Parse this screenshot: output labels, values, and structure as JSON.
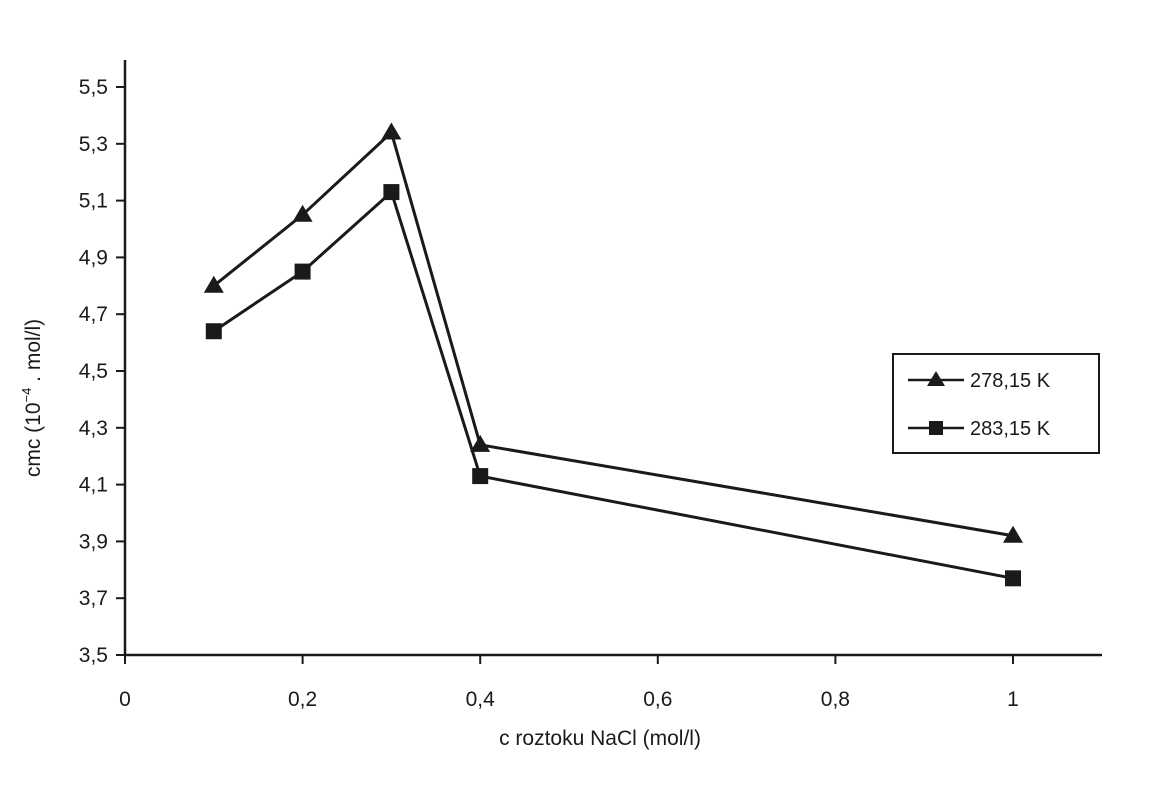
{
  "chart_data": {
    "type": "line",
    "title": "",
    "xlabel": "c roztoku NaCl  (mol/l)",
    "ylabel_main": "cmc (10",
    "ylabel_sup": "−4",
    "ylabel_tail": " . mol/l)",
    "x_tick_labels": [
      "0",
      "0,2",
      "0,4",
      "0,6",
      "0,8",
      "1"
    ],
    "x_tick_values": [
      0,
      0.2,
      0.4,
      0.6,
      0.8,
      1.0
    ],
    "y_tick_labels": [
      "3,5",
      "3,7",
      "3,9",
      "4,1",
      "4,3",
      "4,5",
      "4,7",
      "4,9",
      "5,1",
      "5,3",
      "5,5"
    ],
    "y_tick_values": [
      3.5,
      3.7,
      3.9,
      4.1,
      4.3,
      4.5,
      4.7,
      4.9,
      5.1,
      5.3,
      5.5
    ],
    "xlim": [
      0,
      1.1
    ],
    "ylim": [
      3.5,
      5.6
    ],
    "grid": false,
    "legend_position": "right",
    "series": [
      {
        "name": "278,15 K",
        "marker": "triangle",
        "x": [
          0.1,
          0.2,
          0.3,
          0.4,
          1.0
        ],
        "y": [
          4.8,
          5.05,
          5.34,
          4.24,
          3.92
        ]
      },
      {
        "name": "283,15 K",
        "marker": "square",
        "x": [
          0.1,
          0.2,
          0.3,
          0.4,
          1.0
        ],
        "y": [
          4.64,
          4.85,
          5.13,
          4.13,
          3.77
        ]
      }
    ],
    "line_color": "#1a1a1a"
  }
}
